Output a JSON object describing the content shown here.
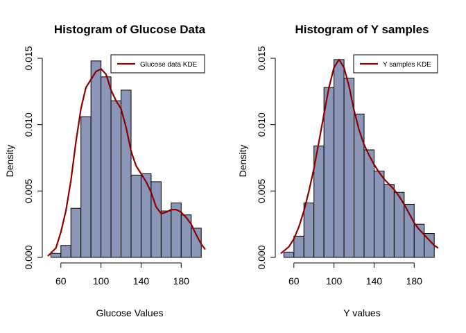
{
  "chart_data": [
    {
      "type": "bar",
      "title": "Histogram of Glucose Data",
      "xlabel": "Glucose Values",
      "ylabel": "Density",
      "xlim": [
        47,
        204
      ],
      "ylim": [
        0,
        0.015
      ],
      "bin_edges": [
        50,
        60,
        70,
        80,
        90,
        100,
        110,
        120,
        130,
        140,
        150,
        160,
        170,
        180,
        190,
        200
      ],
      "values": [
        0.0003,
        0.0009,
        0.0037,
        0.0106,
        0.0148,
        0.0136,
        0.0118,
        0.0126,
        0.0062,
        0.0063,
        0.0057,
        0.0035,
        0.0041,
        0.0032,
        0.0022
      ],
      "x_ticks": [
        60,
        100,
        140,
        180
      ],
      "x_tick_labels": [
        "60",
        "100",
        "140",
        "180"
      ],
      "y_ticks": [
        0,
        0.005,
        0.01,
        0.015
      ],
      "y_tick_labels": [
        "0.000",
        "0.005",
        "0.010",
        "0.015"
      ],
      "legend_position": "top-right",
      "bar_color": "#8b96b9",
      "series": [
        {
          "name": "Glucose data KDE",
          "color": "#8b0000",
          "x": [
            47,
            55,
            60,
            65,
            70,
            75,
            80,
            85,
            90,
            95,
            100,
            105,
            110,
            115,
            120,
            125,
            130,
            135,
            140,
            145,
            150,
            155,
            160,
            165,
            170,
            175,
            180,
            185,
            190,
            195,
            200,
            204
          ],
          "y": [
            0.0001,
            0.0007,
            0.0019,
            0.0035,
            0.0058,
            0.0087,
            0.0112,
            0.0128,
            0.0134,
            0.014,
            0.0142,
            0.0138,
            0.0126,
            0.0118,
            0.0112,
            0.0098,
            0.008,
            0.0069,
            0.0063,
            0.0057,
            0.0049,
            0.0038,
            0.0033,
            0.0034,
            0.0036,
            0.0036,
            0.0034,
            0.003,
            0.0025,
            0.0017,
            0.001,
            0.0006
          ]
        }
      ]
    },
    {
      "type": "bar",
      "title": "Histogram of Y samples",
      "xlabel": "Y values",
      "ylabel": "Density",
      "xlim": [
        47,
        204
      ],
      "ylim": [
        0,
        0.015
      ],
      "bin_edges": [
        50,
        60,
        70,
        80,
        90,
        100,
        110,
        120,
        130,
        140,
        150,
        160,
        170,
        180,
        190,
        200
      ],
      "values": [
        0.0004,
        0.0016,
        0.0041,
        0.0084,
        0.0128,
        0.0149,
        0.0135,
        0.0108,
        0.0081,
        0.0065,
        0.0055,
        0.0049,
        0.004,
        0.0025,
        0.0018
      ],
      "x_ticks": [
        60,
        100,
        140,
        180
      ],
      "x_tick_labels": [
        "60",
        "100",
        "140",
        "180"
      ],
      "y_ticks": [
        0,
        0.005,
        0.01,
        0.015
      ],
      "y_tick_labels": [
        "0.000",
        "0.005",
        "0.010",
        "0.015"
      ],
      "legend_position": "top-right",
      "bar_color": "#8b96b9",
      "series": [
        {
          "name": "Y samples KDE",
          "color": "#8b0000",
          "x": [
            47,
            55,
            60,
            65,
            70,
            75,
            80,
            85,
            90,
            95,
            100,
            105,
            110,
            115,
            120,
            125,
            130,
            135,
            140,
            145,
            150,
            155,
            160,
            165,
            170,
            175,
            180,
            185,
            190,
            195,
            200,
            204
          ],
          "y": [
            0.0003,
            0.0008,
            0.0014,
            0.0023,
            0.0035,
            0.005,
            0.0067,
            0.0087,
            0.0108,
            0.0128,
            0.0143,
            0.0149,
            0.0143,
            0.0129,
            0.0111,
            0.0096,
            0.0085,
            0.0077,
            0.007,
            0.0064,
            0.0059,
            0.0055,
            0.0051,
            0.0046,
            0.004,
            0.0033,
            0.0026,
            0.0021,
            0.0017,
            0.0013,
            0.0009,
            0.0007
          ]
        }
      ]
    }
  ]
}
